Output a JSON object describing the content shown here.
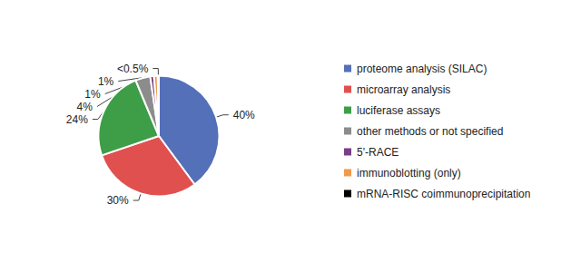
{
  "chart_data": {
    "type": "pie",
    "categories": [
      "proteome analysis (SILAC)",
      "microarray analysis",
      "luciferase assays",
      "other methods or not specified",
      "5'-RACE",
      "immunoblotting (only)",
      "mRNA-RISC coimmunoprecipitation"
    ],
    "values": [
      40,
      30,
      24,
      4,
      1,
      1,
      0.3
    ],
    "value_labels": [
      "40%",
      "30%",
      "24%",
      "4%",
      "1%",
      "1%",
      "<0.5%"
    ],
    "colors": [
      "#5470b8",
      "#e0504f",
      "#3e9e48",
      "#8c8c8c",
      "#7a3d8a",
      "#f09a50",
      "#000000"
    ],
    "data_labels": true,
    "legend": "right"
  }
}
